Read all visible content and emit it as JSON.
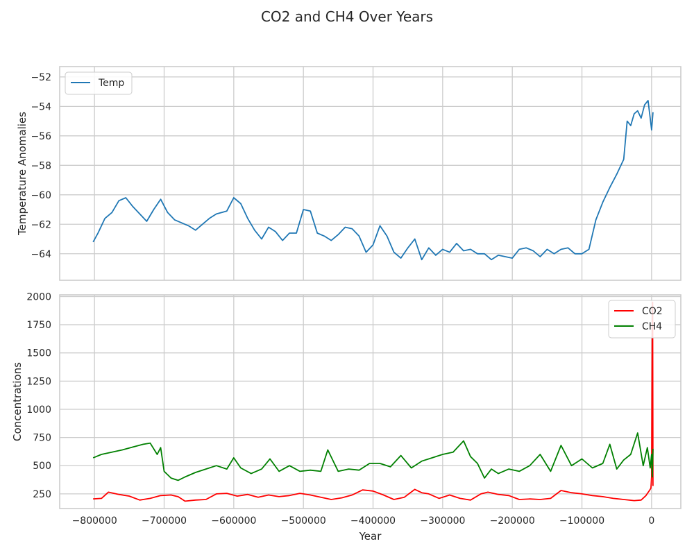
{
  "figure": {
    "title": "CO2 and CH4 Over Years"
  },
  "chart_data": [
    {
      "type": "line",
      "title": "",
      "xlabel": "",
      "ylabel": "Temperature Anomalies",
      "xlim": [
        -850000,
        42000
      ],
      "ylim": [
        -65.8,
        -51.3
      ],
      "xticks": [
        -800000,
        -700000,
        -600000,
        -500000,
        -400000,
        -300000,
        -200000,
        -100000,
        0
      ],
      "yticks": [
        -64,
        -62,
        -60,
        -58,
        -56,
        -54,
        -52
      ],
      "grid": true,
      "legend_position": "upper-left",
      "series": [
        {
          "name": "Temp",
          "color": "#1f77b4",
          "x": [
            -802000,
            -795000,
            -785000,
            -775000,
            -765000,
            -755000,
            -745000,
            -735000,
            -725000,
            -715000,
            -705000,
            -695000,
            -685000,
            -675000,
            -665000,
            -655000,
            -645000,
            -635000,
            -625000,
            -610000,
            -600000,
            -590000,
            -580000,
            -570000,
            -560000,
            -550000,
            -540000,
            -530000,
            -520000,
            -510000,
            -500000,
            -490000,
            -480000,
            -470000,
            -460000,
            -450000,
            -440000,
            -430000,
            -420000,
            -410000,
            -400000,
            -390000,
            -380000,
            -370000,
            -360000,
            -350000,
            -340000,
            -330000,
            -320000,
            -310000,
            -300000,
            -290000,
            -280000,
            -270000,
            -260000,
            -250000,
            -240000,
            -230000,
            -220000,
            -210000,
            -200000,
            -190000,
            -180000,
            -170000,
            -160000,
            -150000,
            -140000,
            -130000,
            -120000,
            -110000,
            -100000,
            -90000,
            -80000,
            -70000,
            -60000,
            -50000,
            -40000,
            -35000,
            -30000,
            -25000,
            -20000,
            -15000,
            -10000,
            -5000,
            -2000,
            0,
            2000
          ],
          "y": [
            -63.2,
            -62.6,
            -61.6,
            -61.2,
            -60.4,
            -60.2,
            -60.8,
            -61.3,
            -61.8,
            -61.0,
            -60.3,
            -61.2,
            -61.7,
            -61.9,
            -62.1,
            -62.4,
            -62.0,
            -61.6,
            -61.3,
            -61.1,
            -60.2,
            -60.6,
            -61.6,
            -62.4,
            -63.0,
            -62.2,
            -62.5,
            -63.1,
            -62.6,
            -62.6,
            -61.0,
            -61.1,
            -62.6,
            -62.8,
            -63.1,
            -62.7,
            -62.2,
            -62.3,
            -62.8,
            -63.9,
            -63.4,
            -62.1,
            -62.8,
            -63.9,
            -64.3,
            -63.6,
            -63.0,
            -64.4,
            -63.6,
            -64.1,
            -63.7,
            -63.9,
            -63.3,
            -63.8,
            -63.7,
            -64.0,
            -64.0,
            -64.4,
            -64.1,
            -64.2,
            -64.3,
            -63.7,
            -63.6,
            -63.8,
            -64.2,
            -63.7,
            -64.0,
            -63.7,
            -63.6,
            -64.0,
            -64.0,
            -63.7,
            -61.7,
            -60.5,
            -59.5,
            -58.6,
            -57.6,
            -55.0,
            -55.3,
            -54.5,
            -54.3,
            -54.8,
            -53.9,
            -53.6,
            -54.8,
            -55.6,
            -54.4
          ]
        }
      ]
    },
    {
      "type": "line",
      "title": "",
      "xlabel": "Year",
      "ylabel": "Concentrations",
      "xlim": [
        -850000,
        42000
      ],
      "ylim": [
        120,
        2015
      ],
      "xticks": [
        -800000,
        -700000,
        -600000,
        -500000,
        -400000,
        -300000,
        -200000,
        -100000,
        0
      ],
      "yticks": [
        250,
        500,
        750,
        1000,
        1250,
        1500,
        1750,
        2000
      ],
      "grid": true,
      "legend_position": "upper-right",
      "series": [
        {
          "name": "CO2",
          "color": "#ff0000",
          "x": [
            -802000,
            -790000,
            -780000,
            -765000,
            -750000,
            -735000,
            -720000,
            -705000,
            -690000,
            -680000,
            -670000,
            -655000,
            -640000,
            -625000,
            -610000,
            -595000,
            -580000,
            -565000,
            -550000,
            -535000,
            -520000,
            -505000,
            -490000,
            -475000,
            -460000,
            -445000,
            -430000,
            -415000,
            -400000,
            -385000,
            -370000,
            -355000,
            -340000,
            -330000,
            -320000,
            -305000,
            -290000,
            -275000,
            -260000,
            -245000,
            -235000,
            -220000,
            -205000,
            -190000,
            -175000,
            -160000,
            -145000,
            -130000,
            -115000,
            -100000,
            -85000,
            -70000,
            -55000,
            -40000,
            -25000,
            -15000,
            -8000,
            -3000,
            -1000,
            0,
            500,
            1000,
            1500,
            2000
          ],
          "y": [
            205,
            210,
            265,
            245,
            230,
            195,
            210,
            235,
            240,
            225,
            185,
            195,
            200,
            250,
            255,
            230,
            245,
            220,
            240,
            225,
            235,
            255,
            240,
            220,
            200,
            215,
            240,
            285,
            275,
            240,
            200,
            220,
            290,
            260,
            250,
            210,
            240,
            210,
            195,
            250,
            265,
            245,
            235,
            200,
            205,
            200,
            210,
            280,
            260,
            250,
            235,
            225,
            210,
            200,
            190,
            195,
            235,
            280,
            300,
            400,
            1160,
            1750,
            1950,
            320
          ]
        },
        {
          "name": "CH4",
          "color": "#008000",
          "x": [
            -802000,
            -790000,
            -775000,
            -760000,
            -745000,
            -730000,
            -720000,
            -710000,
            -705000,
            -700000,
            -690000,
            -680000,
            -670000,
            -655000,
            -640000,
            -625000,
            -610000,
            -600000,
            -590000,
            -575000,
            -560000,
            -548000,
            -535000,
            -520000,
            -505000,
            -490000,
            -475000,
            -465000,
            -450000,
            -435000,
            -420000,
            -405000,
            -390000,
            -375000,
            -360000,
            -345000,
            -330000,
            -315000,
            -300000,
            -285000,
            -270000,
            -260000,
            -250000,
            -240000,
            -230000,
            -220000,
            -205000,
            -190000,
            -175000,
            -160000,
            -145000,
            -130000,
            -115000,
            -100000,
            -85000,
            -70000,
            -60000,
            -50000,
            -40000,
            -30000,
            -20000,
            -12000,
            -6000,
            -2000,
            0,
            1000,
            2000
          ],
          "y": [
            570,
            600,
            620,
            640,
            665,
            690,
            700,
            600,
            660,
            450,
            390,
            370,
            400,
            440,
            470,
            500,
            470,
            570,
            480,
            430,
            470,
            560,
            450,
            500,
            450,
            460,
            450,
            640,
            450,
            470,
            460,
            520,
            520,
            490,
            590,
            480,
            540,
            570,
            600,
            620,
            720,
            580,
            520,
            390,
            470,
            430,
            470,
            450,
            500,
            600,
            450,
            680,
            500,
            560,
            480,
            520,
            690,
            470,
            550,
            600,
            790,
            500,
            660,
            480,
            600,
            400,
            650
          ]
        }
      ]
    }
  ]
}
